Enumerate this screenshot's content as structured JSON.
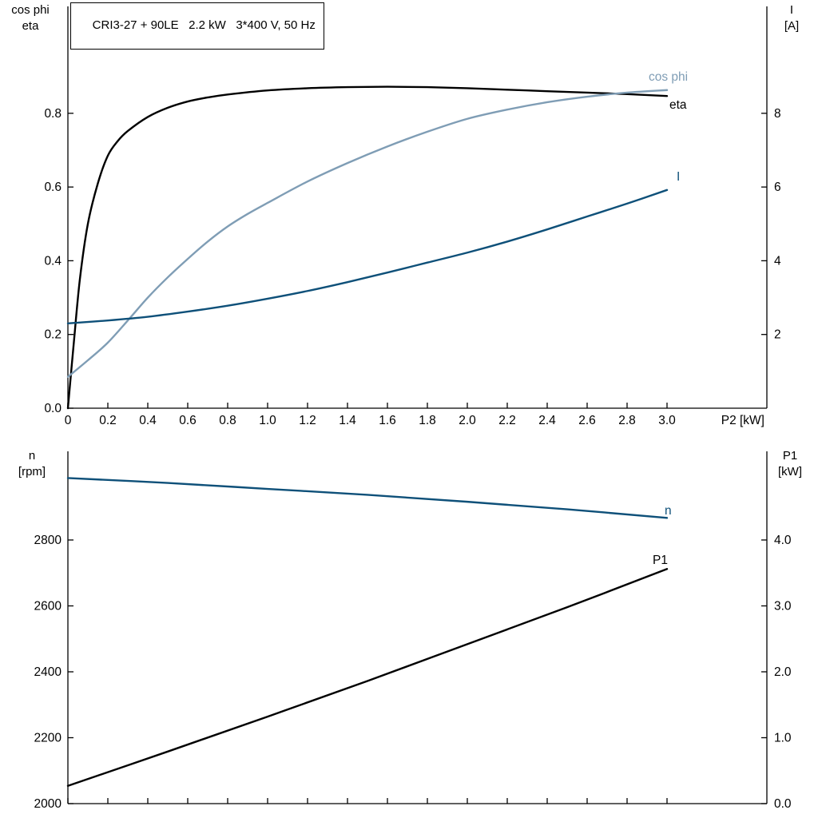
{
  "title_box": "CRI3-27 + 90LE   2.2 kW   3*400 V, 50 Hz",
  "colors": {
    "axis": "#000000",
    "eta": "#000000",
    "cos_phi": "#7f9db5",
    "current": "#0e5079",
    "speed": "#0e5079",
    "p1": "#000000"
  },
  "chart_data": [
    {
      "type": "line",
      "title": "CRI3-27 + 90LE 2.2 kW 3*400 V, 50 Hz",
      "grid": false,
      "x_axis": {
        "label": "P2 [kW]",
        "range": [
          0,
          3.5
        ],
        "tick_values": [
          0,
          0.2,
          0.4,
          0.6,
          0.8,
          1.0,
          1.2,
          1.4,
          1.6,
          1.8,
          2.0,
          2.2,
          2.4,
          2.6,
          2.8,
          3.0
        ],
        "tick_labels": [
          "0",
          "0.2",
          "0.4",
          "0.6",
          "0.8",
          "1.0",
          "1.2",
          "1.4",
          "1.6",
          "1.8",
          "2.0",
          "2.2",
          "2.4",
          "2.6",
          "2.8",
          "3.0"
        ]
      },
      "left_axis": {
        "title": [
          "cos phi",
          "eta"
        ],
        "range": [
          0,
          1.09
        ],
        "tick_values": [
          0,
          0.2,
          0.4,
          0.6,
          0.8
        ],
        "tick_labels": [
          "0.0",
          "0.2",
          "0.4",
          "0.6",
          "0.8"
        ]
      },
      "right_axis": {
        "title": [
          "I",
          "[A]"
        ],
        "range": [
          0,
          10.9
        ],
        "tick_values": [
          2,
          4,
          6,
          8
        ],
        "tick_labels": [
          "2",
          "4",
          "6",
          "8"
        ]
      },
      "series": [
        {
          "name": "eta",
          "axis": "left",
          "color_key": "eta",
          "points": [
            [
              0,
              0
            ],
            [
              0.03,
              0.18
            ],
            [
              0.06,
              0.35
            ],
            [
              0.1,
              0.5
            ],
            [
              0.15,
              0.61
            ],
            [
              0.2,
              0.685
            ],
            [
              0.25,
              0.725
            ],
            [
              0.3,
              0.752
            ],
            [
              0.4,
              0.79
            ],
            [
              0.5,
              0.815
            ],
            [
              0.6,
              0.832
            ],
            [
              0.7,
              0.843
            ],
            [
              0.8,
              0.851
            ],
            [
              1.0,
              0.862
            ],
            [
              1.2,
              0.868
            ],
            [
              1.4,
              0.871
            ],
            [
              1.6,
              0.872
            ],
            [
              1.8,
              0.871
            ],
            [
              2.0,
              0.868
            ],
            [
              2.2,
              0.864
            ],
            [
              2.4,
              0.86
            ],
            [
              2.6,
              0.856
            ],
            [
              2.8,
              0.852
            ],
            [
              3.0,
              0.847
            ]
          ]
        },
        {
          "name": "cos phi",
          "axis": "left",
          "color_key": "cos_phi",
          "points": [
            [
              0,
              0.085
            ],
            [
              0.1,
              0.13
            ],
            [
              0.2,
              0.178
            ],
            [
              0.3,
              0.238
            ],
            [
              0.4,
              0.3
            ],
            [
              0.5,
              0.355
            ],
            [
              0.6,
              0.405
            ],
            [
              0.7,
              0.452
            ],
            [
              0.8,
              0.493
            ],
            [
              0.9,
              0.527
            ],
            [
              1.0,
              0.557
            ],
            [
              1.2,
              0.615
            ],
            [
              1.4,
              0.665
            ],
            [
              1.6,
              0.71
            ],
            [
              1.8,
              0.75
            ],
            [
              2.0,
              0.785
            ],
            [
              2.2,
              0.81
            ],
            [
              2.4,
              0.83
            ],
            [
              2.6,
              0.845
            ],
            [
              2.8,
              0.856
            ],
            [
              3.0,
              0.863
            ]
          ]
        },
        {
          "name": "I",
          "axis": "right",
          "color_key": "current",
          "points": [
            [
              0,
              2.3
            ],
            [
              0.2,
              2.38
            ],
            [
              0.4,
              2.48
            ],
            [
              0.6,
              2.62
            ],
            [
              0.8,
              2.78
            ],
            [
              1.0,
              2.97
            ],
            [
              1.2,
              3.18
            ],
            [
              1.4,
              3.42
            ],
            [
              1.6,
              3.68
            ],
            [
              1.8,
              3.95
            ],
            [
              2.0,
              4.22
            ],
            [
              2.2,
              4.52
            ],
            [
              2.4,
              4.85
            ],
            [
              2.6,
              5.2
            ],
            [
              2.8,
              5.55
            ],
            [
              3.0,
              5.92
            ]
          ]
        }
      ]
    },
    {
      "type": "line",
      "title": "",
      "grid": false,
      "x_axis": {
        "label": "",
        "range": [
          0,
          3.5
        ],
        "tick_values": [
          0,
          0.2,
          0.4,
          0.6,
          0.8,
          1.0,
          1.2,
          1.4,
          1.6,
          1.8,
          2.0,
          2.2,
          2.4,
          2.6,
          2.8,
          3.0
        ],
        "tick_labels": []
      },
      "left_axis": {
        "title": [
          "n",
          "[rpm]"
        ],
        "range": [
          2000,
          3069
        ],
        "tick_values": [
          2000,
          2200,
          2400,
          2600,
          2800
        ],
        "tick_labels": [
          "2000",
          "2200",
          "2400",
          "2600",
          "2800"
        ]
      },
      "right_axis": {
        "title": [
          "P1",
          "[kW]"
        ],
        "range": [
          0,
          5.345
        ],
        "tick_values": [
          0,
          1,
          2,
          3,
          4
        ],
        "tick_labels": [
          "0.0",
          "1.0",
          "2.0",
          "3.0",
          "4.0"
        ]
      },
      "series": [
        {
          "name": "n",
          "axis": "left",
          "color_key": "speed",
          "points": [
            [
              0,
              2988
            ],
            [
              0.5,
              2973
            ],
            [
              1.0,
              2955
            ],
            [
              1.5,
              2937
            ],
            [
              2.0,
              2916
            ],
            [
              2.5,
              2893
            ],
            [
              3.0,
              2867
            ]
          ]
        },
        {
          "name": "P1",
          "axis": "right",
          "color_key": "p1",
          "points": [
            [
              0,
              0.27
            ],
            [
              0.5,
              0.79
            ],
            [
              1.0,
              1.32
            ],
            [
              1.5,
              1.86
            ],
            [
              2.0,
              2.42
            ],
            [
              2.5,
              2.98
            ],
            [
              3.0,
              3.56
            ]
          ]
        }
      ]
    }
  ]
}
